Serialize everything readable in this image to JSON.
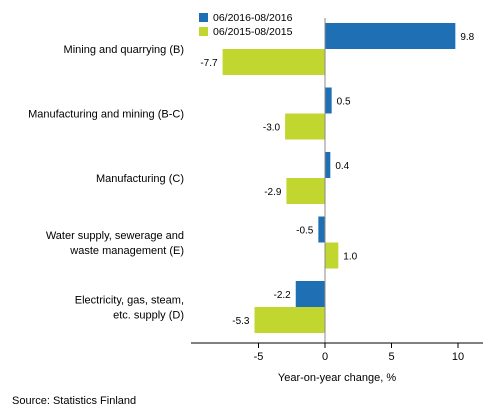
{
  "chart_data": {
    "type": "bar",
    "orientation": "horizontal",
    "categories": [
      [
        "Mining and quarrying (B)"
      ],
      [
        "Manufacturing and mining (B-C)"
      ],
      [
        "Manufacturing (C)"
      ],
      [
        "Water supply, sewerage and",
        "waste management (E)"
      ],
      [
        "Electricity, gas, steam,",
        "etc. supply (D)"
      ]
    ],
    "series": [
      {
        "name": "06/2016-08/2016",
        "color": "#1f6fb5",
        "values": [
          9.8,
          0.5,
          0.4,
          -0.5,
          -2.2
        ]
      },
      {
        "name": "06/2015-08/2015",
        "color": "#c2d630",
        "values": [
          -7.7,
          -3.0,
          -2.9,
          1.0,
          -5.3
        ]
      }
    ],
    "value_labels": [
      [
        "9.8",
        "0.5",
        "0.4",
        "-0.5",
        "-2.2"
      ],
      [
        "-7.7",
        "-3.0",
        "-2.9",
        "1.0",
        "-5.3"
      ]
    ],
    "xlim": [
      -10,
      12
    ],
    "xticks": [
      -5,
      0,
      5,
      10
    ],
    "xlabel": "Year-on-year change, %",
    "legend_position": "top-left of plot",
    "grid": false
  },
  "footer": {
    "source": "Source: Statistics Finland"
  }
}
